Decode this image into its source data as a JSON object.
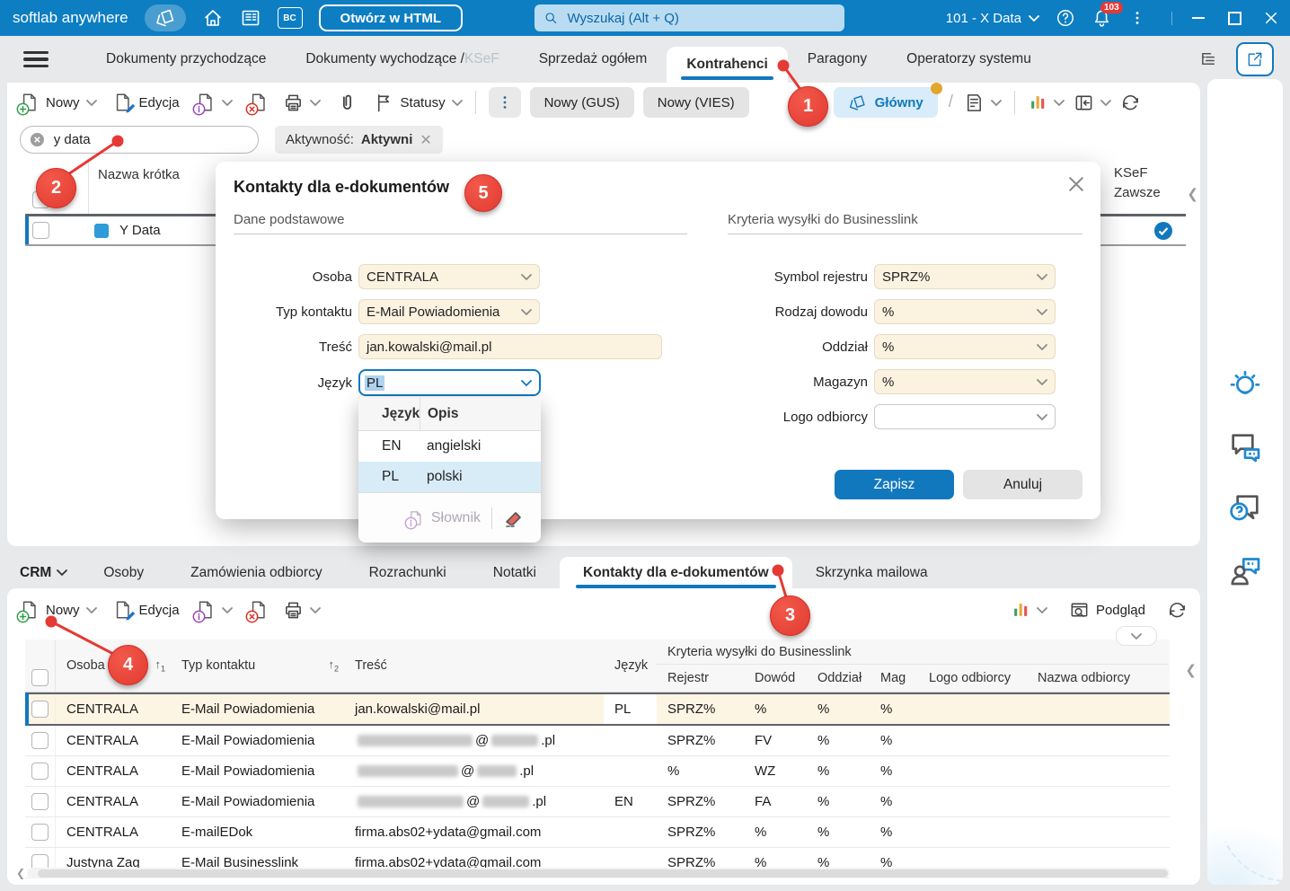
{
  "topbar": {
    "app_title": "softlab anywhere",
    "open_html": "Otwórz w HTML",
    "search_placeholder": "Wyszukaj (Alt + Q)",
    "company": "101 - X Data",
    "notif_count": "103"
  },
  "tabs": {
    "items": [
      {
        "label": "Dokumenty przychodzące"
      },
      {
        "label": "Dokumenty wychodzące / ",
        "suffix": "KSeF"
      },
      {
        "label": "Sprzedaż ogółem"
      },
      {
        "label": "Kontrahenci",
        "active": true
      },
      {
        "label": "Paragony"
      },
      {
        "label": "Operatorzy systemu"
      }
    ]
  },
  "toolbar": {
    "nowy": "Nowy",
    "edycja": "Edycja",
    "statusy": "Statusy",
    "nowy_gus": "Nowy (GUS)",
    "nowy_vies": "Nowy (VIES)",
    "glowny": "Główny"
  },
  "filter": {
    "search_value": "y data",
    "chip_label": "Aktywność:",
    "chip_value": "Aktywni"
  },
  "grid": {
    "col_nazwa": "Nazwa krótka",
    "col_ksef_1": "KSeF",
    "col_ksef_2": "Zawsze",
    "row_name": "Y Data"
  },
  "modal": {
    "title": "Kontakty dla e-dokumentów",
    "section_left": "Dane podstawowe",
    "section_right": "Kryteria wysyłki do Businesslink",
    "osoba_label": "Osoba",
    "osoba_value": "CENTRALA",
    "typ_label": "Typ kontaktu",
    "typ_value": "E-Mail Powiadomienia",
    "tresc_label": "Treść",
    "tresc_value": "jan.kowalski@mail.pl",
    "jezyk_label": "Język",
    "jezyk_value": "PL",
    "right_fields": [
      {
        "label": "Symbol rejestru",
        "value": "SPRZ%"
      },
      {
        "label": "Rodzaj dowodu",
        "value": "%"
      },
      {
        "label": "Oddział",
        "value": "%"
      },
      {
        "label": "Magazyn",
        "value": "%"
      },
      {
        "label": "Logo odbiorcy",
        "value": ""
      }
    ],
    "dropdown": {
      "col_code": "Język",
      "col_desc": "Opis",
      "options": [
        {
          "code": "EN",
          "desc": "angielski",
          "selected": false
        },
        {
          "code": "PL",
          "desc": "polski",
          "selected": true
        }
      ],
      "slownik": "Słownik"
    },
    "zapisz": "Zapisz",
    "anuluj": "Anuluj"
  },
  "bottom_tabs": {
    "crm": "CRM",
    "items": [
      {
        "label": "Osoby"
      },
      {
        "label": "Zamówienia odbiorcy"
      },
      {
        "label": "Rozrachunki"
      },
      {
        "label": "Notatki"
      },
      {
        "label": "Kontakty dla e-dokumentów",
        "active": true
      },
      {
        "label": "Skrzynka mailowa"
      }
    ]
  },
  "bottom_toolbar": {
    "nowy": "Nowy",
    "edycja": "Edycja",
    "podglad": "Podgląd"
  },
  "bottom_table": {
    "col_osoba": "Osoba",
    "sort_osoba": "1",
    "col_typ": "Typ kontaktu",
    "sort_typ": "2",
    "col_tresc": "Treść",
    "col_jezyk": "Język",
    "group_header": "Kryteria wysyłki do Businesslink",
    "sub_cols": [
      "Rejestr",
      "Dowód",
      "Oddział",
      "Mag",
      "Logo odbiorcy",
      "Nazwa odbiorcy"
    ],
    "rows": [
      {
        "osoba": "CENTRALA",
        "typ": "E-Mail Powiadomienia",
        "tresc": "jan.kowalski@mail.pl",
        "redacted": false,
        "jezyk": "PL",
        "rejestr": "SPRZ%",
        "dowod": "%",
        "oddzial": "%",
        "mag": "%",
        "logo": "",
        "nazwa": "",
        "selected": true
      },
      {
        "osoba": "CENTRALA",
        "typ": "E-Mail Powiadomienia",
        "tresc": "",
        "redacted": true,
        "redact_suffix": " .pl",
        "jezyk": "",
        "rejestr": "SPRZ%",
        "dowod": "FV",
        "oddzial": "%",
        "mag": "%",
        "logo": "",
        "nazwa": "",
        "selected": false
      },
      {
        "osoba": "CENTRALA",
        "typ": "E-Mail Powiadomienia",
        "tresc": "",
        "redacted": true,
        "redact_suffix": " .pl",
        "jezyk": "",
        "rejestr": "%",
        "dowod": "WZ",
        "oddzial": "%",
        "mag": "%",
        "logo": "",
        "nazwa": "",
        "selected": false
      },
      {
        "osoba": "CENTRALA",
        "typ": "E-Mail Powiadomienia",
        "tresc": "",
        "redacted": true,
        "redact_suffix": ".pl",
        "jezyk": "EN",
        "rejestr": "SPRZ%",
        "dowod": "FA",
        "oddzial": "%",
        "mag": "%",
        "logo": "",
        "nazwa": "",
        "selected": false
      },
      {
        "osoba": "CENTRALA",
        "typ": "E-mailEDok",
        "tresc": "firma.abs02+ydata@gmail.com",
        "redacted": false,
        "jezyk": "",
        "rejestr": "SPRZ%",
        "dowod": "%",
        "oddzial": "%",
        "mag": "%",
        "logo": "",
        "nazwa": "",
        "selected": false
      },
      {
        "osoba": "Justyna Zag",
        "typ": "E-Mail Businesslink",
        "tresc": "firma.abs02+ydata@gmail.com",
        "redacted": false,
        "jezyk": "",
        "rejestr": "SPRZ%",
        "dowod": "%",
        "oddzial": "%",
        "mag": "%",
        "logo": "",
        "nazwa": "",
        "selected": false
      }
    ]
  },
  "badges": {
    "b1": "1",
    "b2": "2",
    "b3": "3",
    "b4": "4",
    "b5": "5"
  },
  "sidebar": {
    "icons": [
      "idea",
      "chat-feedback",
      "help-question",
      "contact-person"
    ]
  },
  "colors": {
    "accent": "#1178be",
    "topbar_blue": "#0d7ec2",
    "badge_red": "#e53935",
    "cream": "#fbf2e0",
    "selected_row": "#fdf5e4"
  }
}
